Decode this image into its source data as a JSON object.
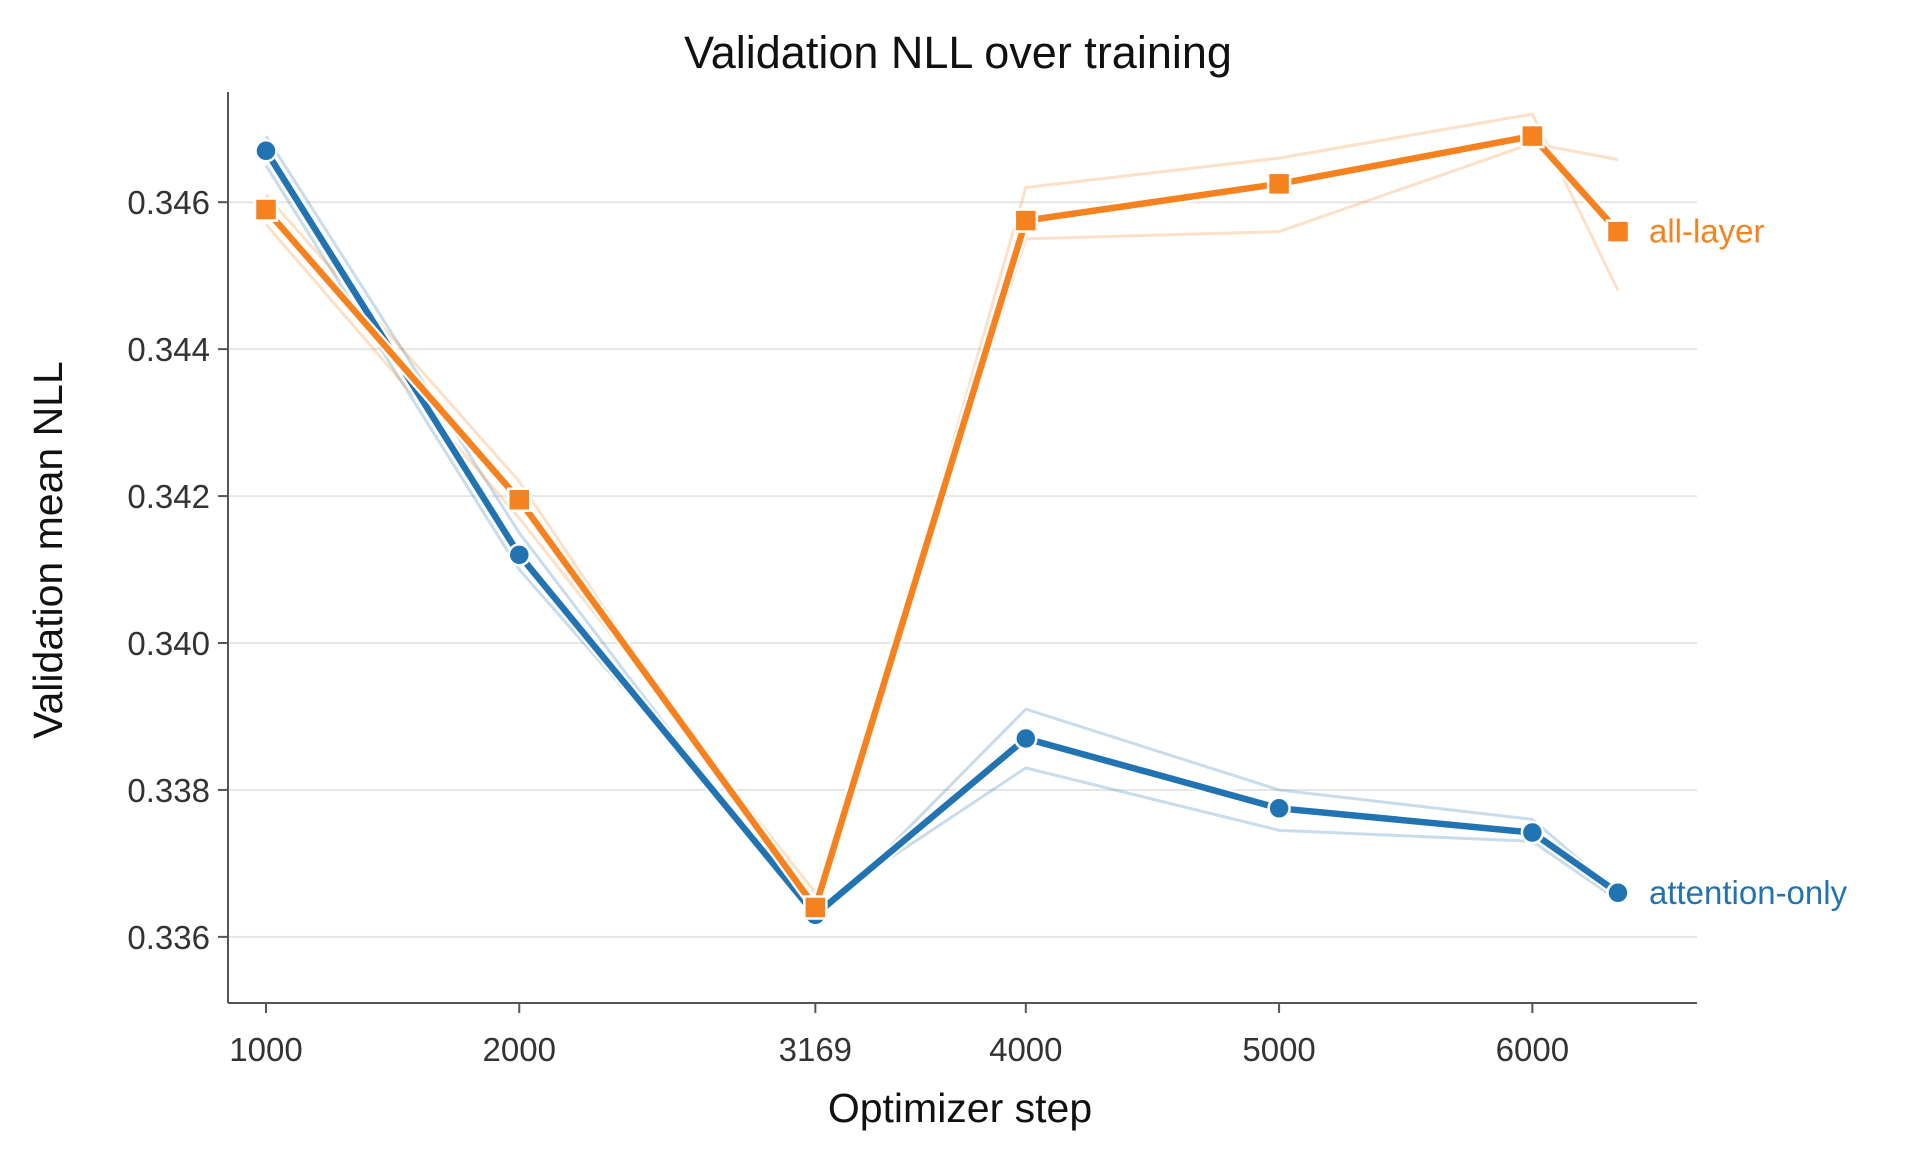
{
  "colors": {
    "attention_only": "#2273b2",
    "all_layer": "#f5821f",
    "grid": "#e6e6e6",
    "axis": "#555555"
  },
  "chart_data": {
    "type": "line",
    "title": "Validation NLL over training",
    "xlabel": "Optimizer step",
    "ylabel": "Validation mean NLL",
    "x_ticks": [
      1000,
      2000,
      3169,
      4000,
      5000,
      6000
    ],
    "y_ticks": [
      0.336,
      0.338,
      0.34,
      0.342,
      0.344,
      0.346
    ],
    "y_tick_labels": [
      "0.336",
      "0.338",
      "0.340",
      "0.342",
      "0.344",
      "0.346"
    ],
    "xlim": [
      850,
      6650
    ],
    "ylim": [
      0.3351,
      0.3475
    ],
    "grid": "horizontal",
    "series": [
      {
        "name": "attention-only",
        "marker": "circle",
        "color_key": "attention_only",
        "x": [
          1000,
          2000,
          3169,
          4000,
          5000,
          6000,
          6338
        ],
        "y": [
          0.3467,
          0.3412,
          0.3363,
          0.3387,
          0.33775,
          0.33742,
          0.3366
        ],
        "runs": [
          [
            0.3469,
            0.3415,
            0.3362,
            0.3391,
            0.338,
            0.3376,
            0.3366
          ],
          [
            0.3465,
            0.341,
            0.3364,
            0.3383,
            0.33745,
            0.3373,
            0.3365
          ]
        ]
      },
      {
        "name": "all-layer",
        "marker": "square",
        "color_key": "all_layer",
        "x": [
          1000,
          2000,
          3169,
          4000,
          5000,
          6000,
          6338
        ],
        "y": [
          0.3459,
          0.34195,
          0.3364,
          0.34575,
          0.34625,
          0.3469,
          0.3456
        ],
        "runs": [
          [
            0.3461,
            0.3422,
            0.3362,
            0.3462,
            0.3466,
            0.3472,
            0.3448
          ],
          [
            0.3457,
            0.3417,
            0.3366,
            0.3455,
            0.3456,
            0.3468,
            0.34658
          ]
        ]
      }
    ]
  }
}
